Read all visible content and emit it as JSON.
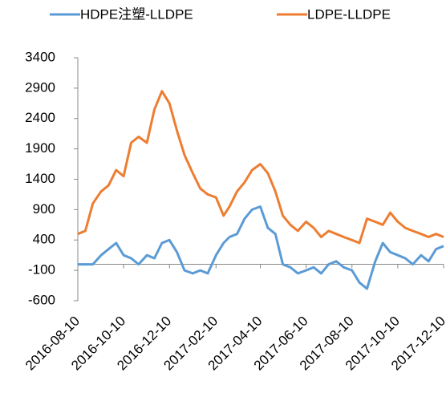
{
  "chart_data": {
    "type": "line",
    "x": [
      "2016-08-10",
      "2016-08-20",
      "2016-08-30",
      "2016-09-10",
      "2016-09-20",
      "2016-09-30",
      "2016-10-10",
      "2016-10-20",
      "2016-10-30",
      "2016-11-10",
      "2016-11-20",
      "2016-11-30",
      "2016-12-10",
      "2016-12-20",
      "2016-12-30",
      "2017-01-10",
      "2017-01-20",
      "2017-01-30",
      "2017-02-10",
      "2017-02-20",
      "2017-02-28",
      "2017-03-10",
      "2017-03-20",
      "2017-03-30",
      "2017-04-10",
      "2017-04-20",
      "2017-04-30",
      "2017-05-10",
      "2017-05-20",
      "2017-05-30",
      "2017-06-10",
      "2017-06-20",
      "2017-06-30",
      "2017-07-10",
      "2017-07-20",
      "2017-07-30",
      "2017-08-10",
      "2017-08-20",
      "2017-08-30",
      "2017-09-10",
      "2017-09-20",
      "2017-09-30",
      "2017-10-10",
      "2017-10-20",
      "2017-10-30",
      "2017-11-10",
      "2017-11-20",
      "2017-11-30",
      "2017-12-10"
    ],
    "series": [
      {
        "name": "HDPE注塑-LLDPE",
        "color": "#5b9bd5",
        "values": [
          0,
          0,
          0,
          150,
          250,
          350,
          150,
          100,
          0,
          150,
          100,
          350,
          400,
          200,
          -100,
          -150,
          -100,
          -150,
          150,
          350,
          450,
          500,
          750,
          900,
          950,
          600,
          500,
          0,
          -50,
          -150,
          -100,
          -50,
          -150,
          0,
          50,
          -50,
          -100,
          -300,
          -400,
          50,
          350,
          200,
          150,
          100,
          0,
          150,
          50,
          250,
          300
        ]
      },
      {
        "name": "LDPE-LLDPE",
        "color": "#ed7d31",
        "values": [
          500,
          550,
          1000,
          1200,
          1300,
          1550,
          1450,
          2000,
          2100,
          2000,
          2550,
          2850,
          2650,
          2200,
          1800,
          1500,
          1250,
          1150,
          1100,
          800,
          950,
          1200,
          1350,
          1550,
          1650,
          1500,
          1200,
          800,
          650,
          550,
          700,
          600,
          450,
          550,
          500,
          450,
          400,
          350,
          750,
          700,
          650,
          850,
          700,
          600,
          550,
          500,
          450,
          500,
          450
        ]
      }
    ],
    "xlim": [
      "2016-08-10",
      "2017-12-10"
    ],
    "xticks": [
      "2016-08-10",
      "2016-10-10",
      "2016-12-10",
      "2017-02-10",
      "2017-04-10",
      "2017-06-10",
      "2017-08-10",
      "2017-10-10",
      "2017-12-10"
    ],
    "ylim": [
      -600,
      3400
    ],
    "yticks": [
      -600,
      -100,
      400,
      900,
      1400,
      1900,
      2400,
      2900,
      3400
    ],
    "legend": "top"
  }
}
